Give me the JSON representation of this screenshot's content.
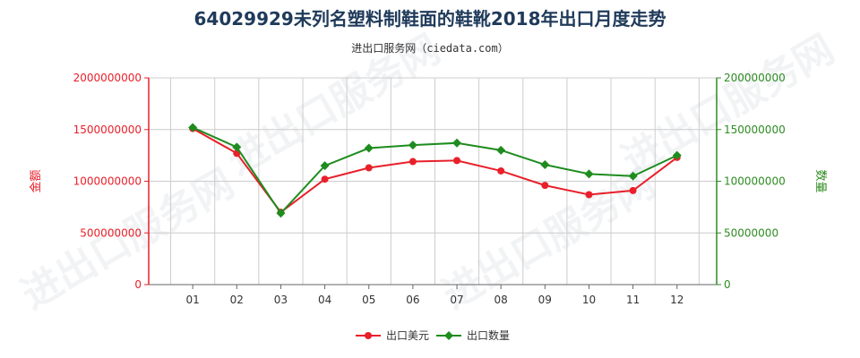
{
  "chart_data": {
    "type": "line",
    "title": "64029929未列名塑料制鞋面的鞋靴2018年出口月度走势",
    "subtitle": "进出口服务网（ciedata.com）",
    "categories": [
      "01",
      "02",
      "03",
      "04",
      "05",
      "06",
      "07",
      "08",
      "09",
      "10",
      "11",
      "12"
    ],
    "left_axis": {
      "label": "金额",
      "range": [
        0,
        2000000000
      ],
      "ticks": [
        0,
        500000000,
        1000000000,
        1500000000,
        2000000000
      ],
      "tick_labels": [
        "0",
        "500000000",
        "1000000000",
        "1500000000",
        "2000000000"
      ],
      "color": "#e8202a"
    },
    "right_axis": {
      "label": "数量",
      "range": [
        0,
        200000000
      ],
      "ticks": [
        0,
        50000000,
        100000000,
        150000000,
        200000000
      ],
      "tick_labels": [
        "0",
        "50000000",
        "100000000",
        "150000000",
        "200000000"
      ],
      "color": "#2e8b22"
    },
    "series": [
      {
        "name": "出口美元",
        "axis": "left",
        "color": "#e8202a",
        "values": [
          1510000000,
          1270000000,
          700000000,
          1020000000,
          1130000000,
          1190000000,
          1200000000,
          1100000000,
          960000000,
          870000000,
          910000000,
          1230000000
        ]
      },
      {
        "name": "出口数量",
        "axis": "right",
        "color": "#1e8c1e",
        "values": [
          152000000,
          133000000,
          69000000,
          115000000,
          132000000,
          135000000,
          137000000,
          130000000,
          116000000,
          107000000,
          105000000,
          125000000
        ]
      }
    ],
    "grid": true,
    "legend_position": "bottom",
    "watermark": "进出口服务网"
  }
}
